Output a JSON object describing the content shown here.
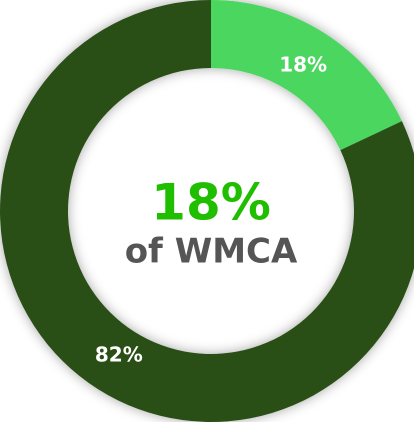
{
  "chart_data": {
    "type": "donut",
    "values": [
      18,
      82
    ],
    "value_labels": [
      "18%",
      "82%"
    ],
    "colors": [
      "#4cd660",
      "#2b5019"
    ],
    "center_label": "18%",
    "center_sublabel": "of WMCA"
  }
}
